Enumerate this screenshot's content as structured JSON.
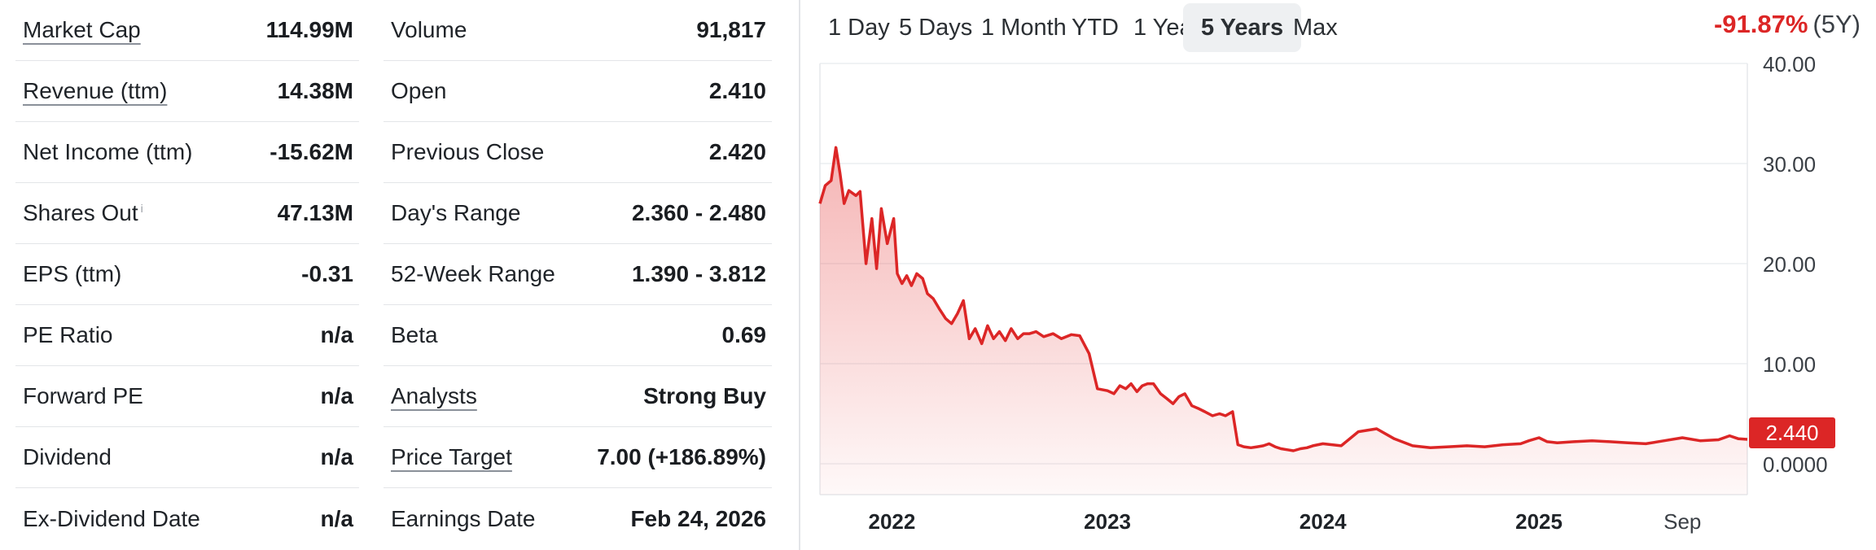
{
  "stats_left": [
    {
      "label": "Market Cap",
      "value": "114.99M",
      "link": true
    },
    {
      "label": "Revenue (ttm)",
      "value": "14.38M",
      "link": true
    },
    {
      "label": "Net Income (ttm)",
      "value": "-15.62M",
      "link": false
    },
    {
      "label": "Shares Out",
      "value": "47.13M",
      "link": false,
      "info": "i"
    },
    {
      "label": "EPS (ttm)",
      "value": "-0.31",
      "link": false
    },
    {
      "label": "PE Ratio",
      "value": "n/a",
      "link": false
    },
    {
      "label": "Forward PE",
      "value": "n/a",
      "link": false
    },
    {
      "label": "Dividend",
      "value": "n/a",
      "link": false
    },
    {
      "label": "Ex-Dividend Date",
      "value": "n/a",
      "link": false
    }
  ],
  "stats_right": [
    {
      "label": "Volume",
      "value": "91,817",
      "link": false
    },
    {
      "label": "Open",
      "value": "2.410",
      "link": false
    },
    {
      "label": "Previous Close",
      "value": "2.420",
      "link": false
    },
    {
      "label": "Day's Range",
      "value": "2.360 - 2.480",
      "link": false
    },
    {
      "label": "52-Week Range",
      "value": "1.390 - 3.812",
      "link": false
    },
    {
      "label": "Beta",
      "value": "0.69",
      "link": false
    },
    {
      "label": "Analysts",
      "value": "Strong Buy",
      "link": true
    },
    {
      "label": "Price Target",
      "value": "7.00 (+186.89%)",
      "link": true
    },
    {
      "label": "Earnings Date",
      "value": "Feb 24, 2026",
      "link": false
    }
  ],
  "ranges": [
    "1 Day",
    "5 Days",
    "1 Month",
    "YTD",
    "1 Year",
    "5 Years",
    "Max"
  ],
  "active_range": "5 Years",
  "performance": {
    "change": "-91.87%",
    "period": "(5Y)"
  },
  "colors": {
    "negative": "#dc2626",
    "line": "#dc2626",
    "fill": "#f2b8b8"
  },
  "chart_data": {
    "type": "area",
    "y_ticks": [
      "40.00",
      "30.00",
      "20.00",
      "10.00",
      "0.0000"
    ],
    "x_ticks": [
      "2022",
      "2023",
      "2024",
      "2025",
      "Sep"
    ],
    "ylim": [
      0,
      40
    ],
    "grid": true,
    "last_price_label": "2.440",
    "series": [
      {
        "x": [
          "2021-09-01",
          "2021-09-10",
          "2021-09-20",
          "2021-09-28",
          "2021-10-05",
          "2021-10-12",
          "2021-10-20",
          "2021-11-01",
          "2021-11-08",
          "2021-11-18",
          "2021-11-28",
          "2021-12-06",
          "2021-12-14",
          "2021-12-24",
          "2022-01-04",
          "2022-01-10",
          "2022-01-18",
          "2022-01-26",
          "2022-02-03",
          "2022-02-12",
          "2022-02-22",
          "2022-03-02",
          "2022-03-12",
          "2022-03-22",
          "2022-04-02",
          "2022-04-12",
          "2022-04-22",
          "2022-05-02",
          "2022-05-12",
          "2022-05-22",
          "2022-06-02",
          "2022-06-12",
          "2022-06-22",
          "2022-07-02",
          "2022-07-12",
          "2022-07-22",
          "2022-08-02",
          "2022-08-12",
          "2022-08-22",
          "2022-09-02",
          "2022-09-15",
          "2022-10-01",
          "2022-10-15",
          "2022-11-01",
          "2022-11-15",
          "2022-12-01",
          "2022-12-15",
          "2023-01-01",
          "2023-01-12",
          "2023-01-22",
          "2023-02-01",
          "2023-02-10",
          "2023-02-20",
          "2023-03-01",
          "2023-03-10",
          "2023-03-20",
          "2023-04-01",
          "2023-04-12",
          "2023-04-22",
          "2023-05-02",
          "2023-05-12",
          "2023-05-24",
          "2023-06-05",
          "2023-06-15",
          "2023-06-28",
          "2023-07-10",
          "2023-07-20",
          "2023-08-01",
          "2023-08-10",
          "2023-08-20",
          "2023-09-01",
          "2023-09-12",
          "2023-09-22",
          "2023-10-02",
          "2023-10-12",
          "2023-10-22",
          "2023-11-02",
          "2023-11-12",
          "2023-11-24",
          "2023-12-05",
          "2023-12-15",
          "2024-01-01",
          "2024-02-01",
          "2024-03-01",
          "2024-04-01",
          "2024-05-01",
          "2024-06-01",
          "2024-07-01",
          "2024-08-01",
          "2024-09-01",
          "2024-10-01",
          "2024-11-01",
          "2024-12-01",
          "2024-12-15",
          "2025-01-01",
          "2025-01-15",
          "2025-02-01",
          "2025-03-01",
          "2025-04-01",
          "2025-05-01",
          "2025-06-01",
          "2025-07-01",
          "2025-08-01",
          "2025-09-01",
          "2025-10-01",
          "2025-11-01",
          "2025-11-20",
          "2025-12-05",
          "2025-12-20"
        ],
        "y": [
          26.0,
          27.8,
          28.3,
          31.6,
          29.0,
          26.0,
          27.3,
          26.8,
          27.2,
          20.0,
          24.5,
          19.5,
          25.5,
          22.0,
          24.5,
          19.0,
          18.0,
          18.8,
          17.8,
          19.0,
          18.5,
          17.0,
          16.5,
          15.5,
          14.5,
          14.0,
          15.0,
          16.3,
          12.5,
          13.5,
          12.0,
          13.8,
          12.5,
          13.2,
          12.3,
          13.5,
          12.5,
          13.0,
          13.0,
          13.2,
          12.7,
          13.0,
          12.5,
          12.9,
          12.8,
          11.0,
          7.5,
          7.3,
          7.0,
          7.8,
          7.5,
          8.0,
          7.2,
          7.8,
          8.0,
          8.0,
          7.0,
          6.5,
          6.0,
          6.7,
          7.0,
          5.8,
          5.5,
          5.2,
          4.8,
          5.0,
          4.8,
          5.2,
          1.9,
          1.7,
          1.6,
          1.7,
          1.8,
          2.0,
          1.7,
          1.5,
          1.4,
          1.3,
          1.5,
          1.6,
          1.8,
          2.0,
          1.8,
          3.2,
          3.5,
          2.5,
          1.8,
          1.6,
          1.7,
          1.8,
          1.7,
          1.9,
          2.0,
          2.3,
          2.6,
          2.2,
          2.1,
          2.2,
          2.3,
          2.2,
          2.1,
          2.0,
          2.3,
          2.6,
          2.3,
          2.4,
          2.8,
          2.5,
          2.44
        ]
      }
    ]
  }
}
